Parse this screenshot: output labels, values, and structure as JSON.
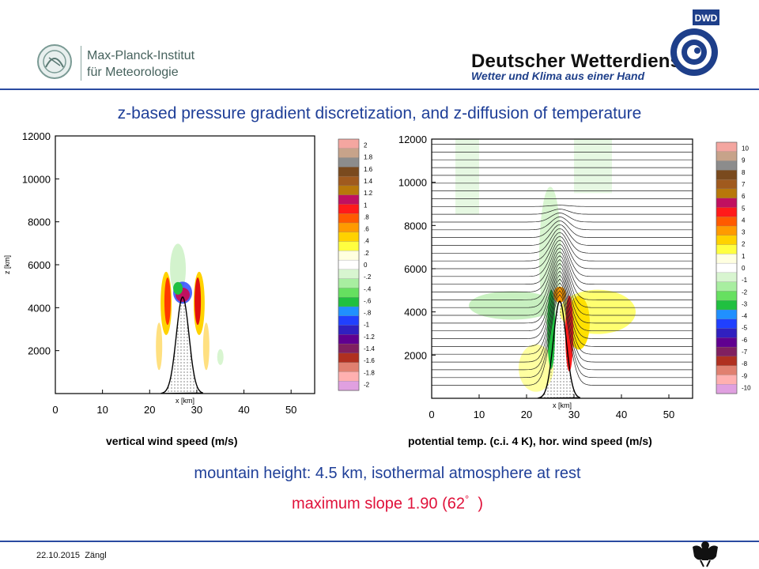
{
  "header": {
    "mpi_line1": "Max-Planck-Institut",
    "mpi_line2": "für Meteorologie",
    "dwd_name": "Deutscher Wetterdienst",
    "dwd_slogan": "Wetter und Klima aus einer Hand",
    "dwd_badge": "DWD"
  },
  "title": "z-based pressure gradient discretization, and z-diffusion of temperature",
  "captions": {
    "left": "vertical wind speed (m/s)",
    "right": "potential temp. (c.i. 4 K), hor. wind speed (m/s)"
  },
  "body": {
    "line1": "mountain height: 4.5 km, isothermal atmosphere at rest",
    "line2_main": "maximum slope 1.90 (62",
    "line2_deg": "°",
    "line2_end": ")"
  },
  "footer": {
    "date": "22.10.2015",
    "author": "Zängl"
  },
  "colors": {
    "title_blue": "#1f3f98",
    "accent_red": "#e0113a",
    "rule_blue": "#2a4aa0"
  },
  "chart_data": [
    {
      "type": "heatmap",
      "title": "vertical wind speed (m/s)",
      "xlabel": "x [km]",
      "ylabel": "z [km]",
      "xlim": [
        0,
        55
      ],
      "ylim": [
        0,
        12000
      ],
      "x_ticks": [
        "0",
        "10",
        "20",
        "30",
        "40",
        "50"
      ],
      "y_ticks": [
        "2000",
        "4000",
        "6000",
        "8000",
        "10000",
        "12000"
      ],
      "mountain": {
        "height_km": 4.5,
        "center_km": 27
      },
      "colorbar": {
        "labels": [
          "2",
          "1.8",
          "1.6",
          "1.4",
          "1.2",
          "1",
          ".8",
          ".6",
          ".4",
          ".2",
          "0",
          "-.2",
          "-.4",
          "-.6",
          "-.8",
          "-1",
          "-1.2",
          "-1.4",
          "-1.6",
          "-1.8",
          "-2"
        ],
        "colors": [
          "#f4a6a0",
          "#c7a38a",
          "#8c8c8c",
          "#7a4a1e",
          "#a05a1e",
          "#b8780a",
          "#c01060",
          "#ff1a1a",
          "#ff5a00",
          "#ff9a00",
          "#ffd200",
          "#ffff40",
          "#ffffe0",
          "#ffffff",
          "#d8f5d0",
          "#a8eea0",
          "#66e060",
          "#20c040",
          "#2090ff",
          "#2040ff",
          "#3020c0",
          "#600090",
          "#802060",
          "#b03020",
          "#e08070",
          "#ffb0b0",
          "#e0a0e0"
        ]
      }
    },
    {
      "type": "heatmap",
      "title": "potential temp. (c.i. 4 K), hor. wind speed (m/s)",
      "xlabel": "x [km]",
      "ylabel": "",
      "xlim": [
        0,
        55
      ],
      "ylim": [
        0,
        12000
      ],
      "x_ticks": [
        "0",
        "10",
        "20",
        "30",
        "40",
        "50"
      ],
      "y_ticks": [
        "2000",
        "4000",
        "6000",
        "8000",
        "10000",
        "12000"
      ],
      "mountain": {
        "height_km": 4.5,
        "center_km": 27
      },
      "isentropes": "contour interval 4 K",
      "colorbar": {
        "labels": [
          "10",
          "9",
          "8",
          "7",
          "6",
          "5",
          "4",
          "3",
          "2",
          "1",
          "0",
          "-1",
          "-2",
          "-3",
          "-4",
          "-5",
          "-6",
          "-7",
          "-8",
          "-9",
          "-10"
        ],
        "colors": [
          "#f4a6a0",
          "#c7a38a",
          "#8c8c8c",
          "#7a4a1e",
          "#a05a1e",
          "#b8780a",
          "#c01060",
          "#ff1a1a",
          "#ff5a00",
          "#ff9a00",
          "#ffd200",
          "#ffff40",
          "#ffffe0",
          "#ffffff",
          "#d8f5d0",
          "#a8eea0",
          "#66e060",
          "#20c040",
          "#2090ff",
          "#2040ff",
          "#3020c0",
          "#600090",
          "#802060",
          "#b03020",
          "#e08070",
          "#ffb0b0",
          "#e0a0e0"
        ]
      }
    }
  ]
}
